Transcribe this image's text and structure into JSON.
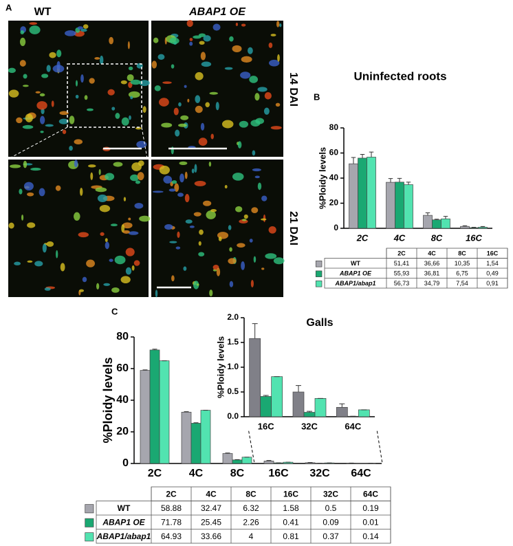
{
  "panels": {
    "a": "A",
    "b": "B",
    "c": "C"
  },
  "images": {
    "wt": "WT",
    "oe": "ABAP1 OE",
    "dai14": "14 DAI",
    "dai21": "21 DAI"
  },
  "chart_data": [
    {
      "type": "bar",
      "title": "Uninfected roots",
      "y_label": "%Ploidy levels",
      "categories": [
        "2C",
        "4C",
        "8C",
        "16C"
      ],
      "ylim": [
        0,
        80
      ],
      "yticks": [
        0,
        20,
        40,
        60,
        80
      ],
      "series": [
        {
          "name": "WT",
          "color": "#a6a6ae",
          "values": [
            51.41,
            36.66,
            10.35,
            1.54
          ],
          "value_labels": [
            "51,41",
            "36,66",
            "10,35",
            "1,54"
          ],
          "errors": [
            5,
            3,
            2,
            0.5
          ]
        },
        {
          "name": "ABAP1 OE",
          "color": "#1aa872",
          "values": [
            55.93,
            36.81,
            6.75,
            0.49
          ],
          "value_labels": [
            "55,93",
            "36,81",
            "6,75",
            "0,49"
          ],
          "errors": [
            3,
            3,
            0.5,
            0.3
          ]
        },
        {
          "name": "ABAP1/abap1",
          "color": "#52e3b0",
          "values": [
            56.73,
            34.79,
            7.54,
            0.91
          ],
          "value_labels": [
            "56,73",
            "34,79",
            "7,54",
            "0,91"
          ],
          "errors": [
            4,
            2,
            2,
            0.5
          ]
        }
      ]
    },
    {
      "type": "bar",
      "y_label": "%Ploidy levels",
      "categories": [
        "2C",
        "4C",
        "8C",
        "16C",
        "32C",
        "64C"
      ],
      "ylim": [
        0,
        80
      ],
      "yticks": [
        0,
        20,
        40,
        60,
        80
      ],
      "series": [
        {
          "name": "WT",
          "color": "#a6a6ae",
          "values": [
            58.88,
            32.47,
            6.32,
            1.58,
            0.5,
            0.19
          ],
          "errors": [
            0.3,
            0.3,
            0.3,
            0.3,
            0.13,
            0.07
          ]
        },
        {
          "name": "ABAP1 OE",
          "color": "#1aa872",
          "values": [
            71.78,
            25.45,
            2.26,
            0.41,
            0.09,
            0.01
          ],
          "errors": [
            0.5,
            0.3,
            0.2,
            0.02,
            0.02,
            0
          ]
        },
        {
          "name": "ABAP1/abap1",
          "color": "#52e3b0",
          "values": [
            64.93,
            33.66,
            4.0,
            0.81,
            0.37,
            0.14
          ],
          "errors": [
            0,
            0,
            0,
            0,
            0,
            0
          ]
        }
      ]
    },
    {
      "type": "bar",
      "title": "Galls",
      "y_label": "%Ploidy levels",
      "categories": [
        "16C",
        "32C",
        "64C"
      ],
      "ylim": [
        0,
        2
      ],
      "yticks": [
        {
          "value": 0,
          "label": "0.0"
        },
        0.5,
        {
          "value": 1,
          "label": "1.0"
        },
        1.5,
        {
          "value": 2,
          "label": "2.0"
        }
      ],
      "series": [
        {
          "name": "WT",
          "color": "#808088",
          "values": [
            1.58,
            0.5,
            0.19
          ],
          "errors": [
            0.3,
            0.13,
            0.07
          ]
        },
        {
          "name": "ABAP1 OE",
          "color": "#1aa872",
          "values": [
            0.41,
            0.09,
            0.01
          ],
          "errors": [
            0.02,
            0.02,
            0
          ]
        },
        {
          "name": "ABAP1/abap1",
          "color": "#52e3b0",
          "values": [
            0.81,
            0.37,
            0.14
          ],
          "errors": [
            0,
            0,
            0
          ]
        }
      ]
    }
  ]
}
